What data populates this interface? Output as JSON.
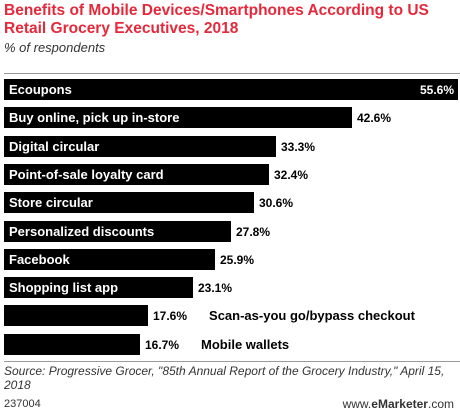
{
  "header": {
    "title": "Benefits of Mobile Devices/Smartphones According to US Retail Grocery Executives, 2018",
    "subtitle": "% of respondents"
  },
  "chart_data": {
    "type": "bar",
    "orientation": "horizontal",
    "categories": [
      "Ecoupons",
      "Buy online, pick up in-store",
      "Digital circular",
      "Point-of-sale loyalty card",
      "Store circular",
      "Personalized discounts",
      "Facebook",
      "Shopping list app",
      "Scan-as-you go/bypass checkout",
      "Mobile wallets"
    ],
    "values": [
      55.6,
      42.6,
      33.3,
      32.4,
      30.6,
      27.8,
      25.9,
      23.1,
      17.6,
      16.7
    ],
    "value_labels": [
      "55.6%",
      "42.6%",
      "33.3%",
      "32.4%",
      "30.6%",
      "27.8%",
      "25.9%",
      "23.1%",
      "17.6%",
      "16.7%"
    ],
    "unit": "%",
    "xlim": [
      0,
      55.6
    ],
    "bar_color": "#000000",
    "label_color_inside": "#ffffff",
    "label_color_outside": "#000000",
    "grid": false,
    "legend": "none"
  },
  "footer": {
    "source": "Source: Progressive Grocer, \"85th Annual Report of the Grocery Industry,\" April 15, 2018",
    "chart_id": "237004",
    "brand_prefix": "www.",
    "brand_e": "e",
    "brand_name": "Marketer",
    "brand_suffix": ".com"
  },
  "colors": {
    "title": "#e5293b",
    "text": "#333333",
    "rule": "#9a9a9a"
  }
}
